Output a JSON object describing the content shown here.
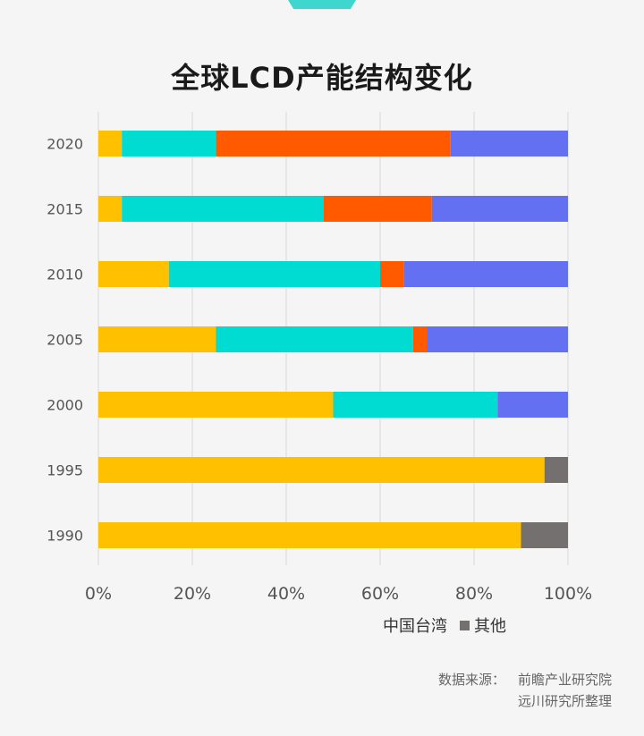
{
  "title": "全球LCD产能结构变化",
  "legend": [
    {
      "name": "中国台湾",
      "color": null
    },
    {
      "name": "其他",
      "color": "#757070"
    }
  ],
  "source": {
    "label": "数据来源：",
    "line1": "前瞻产业研究院",
    "line2": "远川研究所整理"
  },
  "colors": {
    "yellow": "#ffc000",
    "cyan": "#00dcd2",
    "orange": "#ff5a00",
    "blue": "#6470f2",
    "grey": "#757070",
    "accent": "#3fd6cf"
  },
  "chart_data": {
    "type": "bar",
    "orientation": "horizontal",
    "stacked": true,
    "title": "全球LCD产能结构变化",
    "categories": [
      "2020",
      "2015",
      "2010",
      "2005",
      "2000",
      "1995",
      "1990"
    ],
    "series": [
      {
        "color": "#ffc000",
        "values": [
          5,
          5,
          15,
          25,
          50,
          95,
          90
        ]
      },
      {
        "color": "#00dcd2",
        "values": [
          20,
          43,
          45,
          42,
          35,
          0,
          0
        ]
      },
      {
        "color": "#ff5a00",
        "values": [
          50,
          23,
          5,
          3,
          0,
          0,
          0
        ]
      },
      {
        "color": "#6470f2",
        "values": [
          25,
          29,
          35,
          30,
          15,
          0,
          0
        ]
      },
      {
        "name": "其他",
        "color": "#757070",
        "values": [
          0,
          0,
          0,
          0,
          0,
          5,
          10
        ]
      }
    ],
    "xlim": [
      0,
      100
    ],
    "xticks": [
      "0%",
      "20%",
      "40%",
      "60%",
      "80%",
      "100%"
    ],
    "grid": true,
    "legend_position": "bottom-right"
  }
}
